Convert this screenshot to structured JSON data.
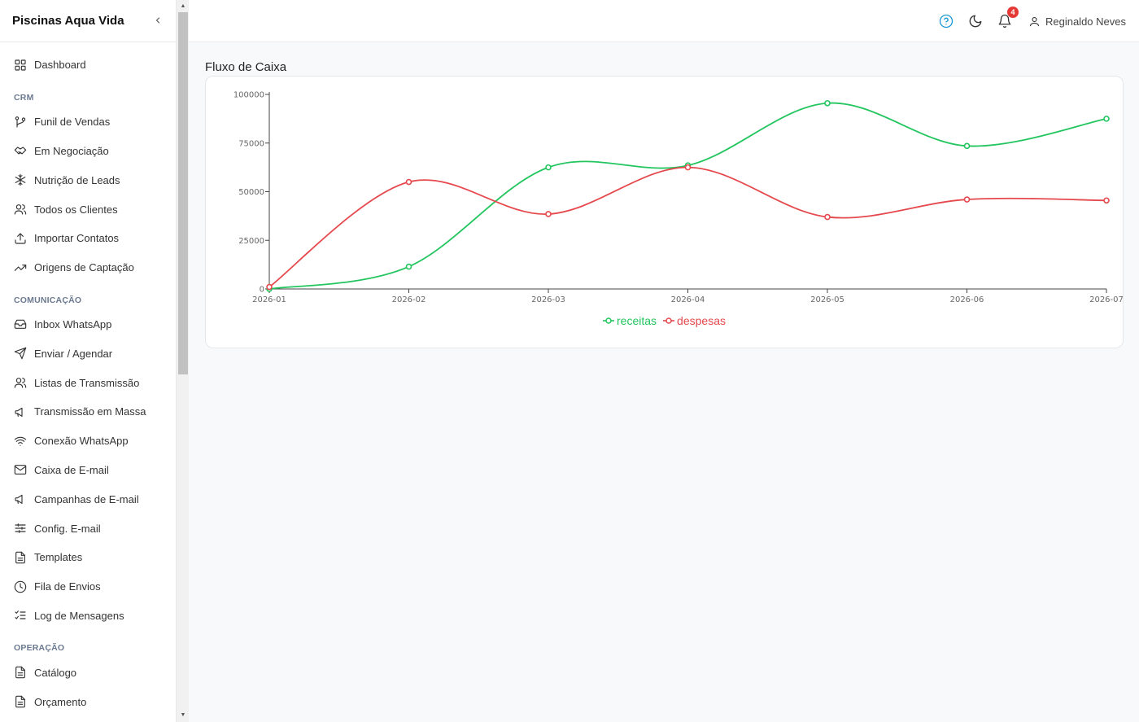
{
  "app": {
    "title": "Piscinas Aqua Vida",
    "collapse_icon": "chevron-left-icon"
  },
  "sidebar": {
    "items": [
      {
        "type": "item",
        "label": "Dashboard",
        "icon": "grid-icon"
      },
      {
        "type": "section",
        "label": "CRM"
      },
      {
        "type": "item",
        "label": "Funil de Vendas",
        "icon": "git-branch-icon"
      },
      {
        "type": "item",
        "label": "Em Negociação",
        "icon": "handshake-icon"
      },
      {
        "type": "item",
        "label": "Nutrição de Leads",
        "icon": "snowflake-icon"
      },
      {
        "type": "item",
        "label": "Todos os Clientes",
        "icon": "users-icon"
      },
      {
        "type": "item",
        "label": "Importar Contatos",
        "icon": "upload-icon"
      },
      {
        "type": "item",
        "label": "Origens de Captação",
        "icon": "trending-up-icon"
      },
      {
        "type": "section",
        "label": "COMUNICAÇÃO"
      },
      {
        "type": "item",
        "label": "Inbox WhatsApp",
        "icon": "inbox-icon"
      },
      {
        "type": "item",
        "label": "Enviar / Agendar",
        "icon": "send-icon"
      },
      {
        "type": "item",
        "label": "Listas de Transmissão",
        "icon": "users-icon"
      },
      {
        "type": "item",
        "label": "Transmissão em Massa",
        "icon": "megaphone-icon"
      },
      {
        "type": "item",
        "label": "Conexão WhatsApp",
        "icon": "wifi-icon"
      },
      {
        "type": "item",
        "label": "Caixa de E-mail",
        "icon": "mail-icon"
      },
      {
        "type": "item",
        "label": "Campanhas de E-mail",
        "icon": "megaphone-icon"
      },
      {
        "type": "item",
        "label": "Config. E-mail",
        "icon": "sliders-icon"
      },
      {
        "type": "item",
        "label": "Templates",
        "icon": "file-text-icon"
      },
      {
        "type": "item",
        "label": "Fila de Envios",
        "icon": "clock-icon"
      },
      {
        "type": "item",
        "label": "Log de Mensagens",
        "icon": "list-checks-icon"
      },
      {
        "type": "section",
        "label": "OPERAÇÃO"
      },
      {
        "type": "item",
        "label": "Catálogo",
        "icon": "file-text-icon"
      },
      {
        "type": "item",
        "label": "Orçamento",
        "icon": "file-text-icon"
      }
    ]
  },
  "header": {
    "help_icon": "help-circle-icon",
    "theme_icon": "moon-icon",
    "notifications_icon": "bell-icon",
    "notification_count": "4",
    "user_icon": "user-icon",
    "user_name": "Reginaldo Neves"
  },
  "main": {
    "title": "Fluxo de Caixa"
  },
  "colors": {
    "receitas": "#22c55e",
    "despesas": "#e5484d",
    "help": "#1c9ad6",
    "badge": "#e53935"
  },
  "chart_data": {
    "type": "line",
    "title": "",
    "x": [
      "2026-01",
      "2026-02",
      "2026-03",
      "2026-04",
      "2026-05",
      "2026-06",
      "2026-07"
    ],
    "ylim": [
      0,
      100000
    ],
    "yticks": [
      0,
      25000,
      50000,
      75000,
      100000
    ],
    "smooth": true,
    "grid": false,
    "legend_position": "bottom-center",
    "series": [
      {
        "name": "receitas",
        "color": "#22c55e",
        "values": [
          0,
          11500,
          62500,
          63500,
          95500,
          73500,
          87500
        ]
      },
      {
        "name": "despesas",
        "color": "#e5484d",
        "values": [
          1000,
          55000,
          38500,
          62500,
          37000,
          46000,
          45500
        ]
      }
    ]
  }
}
